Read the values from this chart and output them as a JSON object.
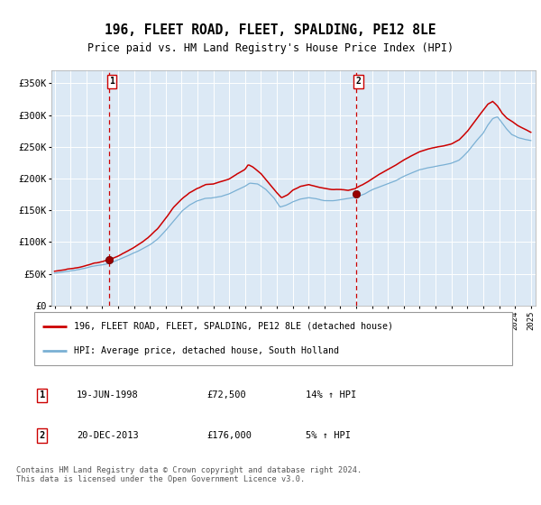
{
  "title": "196, FLEET ROAD, FLEET, SPALDING, PE12 8LE",
  "subtitle": "Price paid vs. HM Land Registry's House Price Index (HPI)",
  "legend_line1": "196, FLEET ROAD, FLEET, SPALDING, PE12 8LE (detached house)",
  "legend_line2": "HPI: Average price, detached house, South Holland",
  "footer": "Contains HM Land Registry data © Crown copyright and database right 2024.\nThis data is licensed under the Open Government Licence v3.0.",
  "transactions": [
    {
      "date": "19-JUN-1998",
      "price": 72500,
      "hpi_pct": "14% ↑ HPI",
      "label": "1"
    },
    {
      "date": "20-DEC-2013",
      "price": 176000,
      "hpi_pct": "5% ↑ HPI",
      "label": "2"
    }
  ],
  "transaction_dates_numeric": [
    1998.46,
    2013.97
  ],
  "transaction_prices": [
    72500,
    176000
  ],
  "ylim": [
    0,
    370000
  ],
  "yticks": [
    0,
    50000,
    100000,
    150000,
    200000,
    250000,
    300000,
    350000
  ],
  "ytick_labels": [
    "£0",
    "£50K",
    "£100K",
    "£150K",
    "£200K",
    "£250K",
    "£300K",
    "£350K"
  ],
  "xlim_start": 1994.8,
  "xlim_end": 2025.3,
  "background_color": "#dce9f5",
  "hpi_line_color": "#7ab0d4",
  "price_line_color": "#cc0000",
  "vline_color": "#cc0000",
  "grid_color": "#ffffff"
}
